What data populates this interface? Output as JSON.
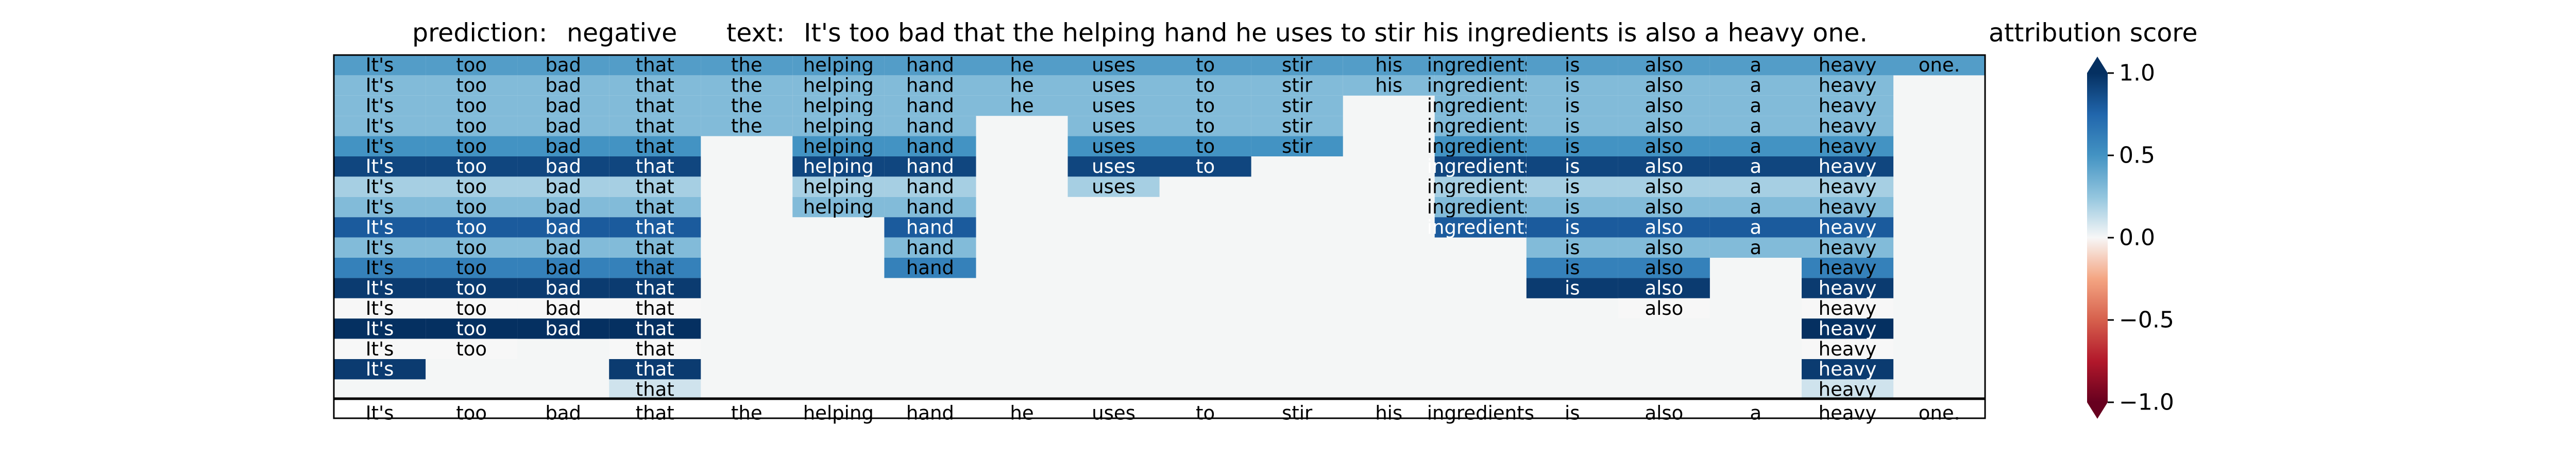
{
  "header": {
    "prediction_label": "prediction:",
    "prediction_value": "negative",
    "text_label": "text:",
    "text_value": "It's too bad that the helping hand he uses to stir his ingredients is also a heavy one.",
    "colorbar_title": "attribution score"
  },
  "colorbar": {
    "ticks": [
      1.0,
      0.5,
      0.0,
      -0.5,
      -1.0
    ],
    "tick_labels": [
      "1.0",
      "0.5",
      "0.0",
      "−0.5",
      "−1.0"
    ],
    "colors": {
      "positive": "#053061",
      "neutral": "#f7f7f7",
      "negative": "#67001f"
    }
  },
  "chart_data": {
    "type": "heatmap",
    "title": "",
    "xlabel": "",
    "ylabel": "",
    "value_range": [
      -1.0,
      1.0
    ],
    "colormap": "RdBu",
    "tokens": [
      "It's",
      "too",
      "bad",
      "that",
      "the",
      "helping",
      "hand",
      "he",
      "uses",
      "to",
      "stir",
      "his",
      "ingredients",
      "is",
      "also",
      "a",
      "heavy",
      "one."
    ],
    "rows": [
      [
        0.45,
        0.45,
        0.45,
        0.45,
        0.45,
        0.45,
        0.45,
        0.45,
        0.45,
        0.45,
        0.45,
        0.45,
        0.45,
        0.45,
        0.45,
        0.45,
        0.45,
        0.45
      ],
      [
        0.3,
        0.3,
        0.3,
        0.3,
        0.3,
        0.3,
        0.3,
        0.3,
        0.3,
        0.3,
        0.3,
        0.3,
        0.3,
        0.3,
        0.3,
        0.3,
        0.3,
        null
      ],
      [
        0.3,
        0.3,
        0.3,
        0.3,
        0.3,
        0.3,
        0.3,
        0.3,
        0.3,
        0.3,
        0.3,
        null,
        0.3,
        0.3,
        0.3,
        0.3,
        0.3,
        null
      ],
      [
        0.3,
        0.3,
        0.3,
        0.3,
        0.3,
        0.3,
        0.3,
        null,
        0.3,
        0.3,
        0.3,
        null,
        0.3,
        0.3,
        0.3,
        0.3,
        0.3,
        null
      ],
      [
        0.5,
        0.5,
        0.5,
        0.5,
        null,
        0.5,
        0.5,
        null,
        0.5,
        0.5,
        0.5,
        null,
        0.5,
        0.5,
        0.5,
        0.5,
        0.5,
        null
      ],
      [
        0.9,
        0.9,
        0.9,
        0.9,
        null,
        0.9,
        0.9,
        null,
        0.9,
        0.9,
        null,
        null,
        0.9,
        0.9,
        0.9,
        0.9,
        0.9,
        null
      ],
      [
        0.2,
        0.2,
        0.2,
        0.2,
        null,
        0.2,
        0.2,
        null,
        0.2,
        null,
        null,
        null,
        0.2,
        0.2,
        0.2,
        0.2,
        0.2,
        null
      ],
      [
        0.3,
        0.3,
        0.3,
        0.3,
        null,
        0.3,
        0.3,
        null,
        null,
        null,
        null,
        null,
        0.3,
        0.3,
        0.3,
        0.3,
        0.3,
        null
      ],
      [
        0.8,
        0.8,
        0.8,
        0.8,
        null,
        null,
        0.8,
        null,
        null,
        null,
        null,
        null,
        0.8,
        0.8,
        0.8,
        0.8,
        0.8,
        null
      ],
      [
        0.3,
        0.3,
        0.3,
        0.3,
        null,
        null,
        0.3,
        null,
        null,
        null,
        null,
        null,
        null,
        0.3,
        0.3,
        0.3,
        0.3,
        null
      ],
      [
        0.6,
        0.6,
        0.6,
        0.6,
        null,
        null,
        0.6,
        null,
        null,
        null,
        null,
        null,
        null,
        0.6,
        0.6,
        null,
        0.6,
        null
      ],
      [
        0.95,
        0.95,
        0.95,
        0.95,
        null,
        null,
        null,
        null,
        null,
        null,
        null,
        null,
        null,
        0.95,
        0.95,
        null,
        0.95,
        null
      ],
      [
        0.0,
        0.0,
        0.0,
        0.0,
        null,
        null,
        null,
        null,
        null,
        null,
        null,
        null,
        null,
        null,
        0.0,
        null,
        0.0,
        null
      ],
      [
        1.0,
        1.0,
        1.0,
        1.0,
        null,
        null,
        null,
        null,
        null,
        null,
        null,
        null,
        null,
        null,
        null,
        null,
        1.0,
        null
      ],
      [
        0.0,
        0.0,
        null,
        0.0,
        null,
        null,
        null,
        null,
        null,
        null,
        null,
        null,
        null,
        null,
        null,
        null,
        0.0,
        null
      ],
      [
        0.95,
        null,
        null,
        0.95,
        null,
        null,
        null,
        null,
        null,
        null,
        null,
        null,
        null,
        null,
        null,
        null,
        0.95,
        null
      ],
      [
        null,
        null,
        null,
        0.1,
        null,
        null,
        null,
        null,
        null,
        null,
        null,
        null,
        null,
        null,
        null,
        null,
        0.1,
        null
      ]
    ],
    "bottom_tokens": [
      "It's",
      "too",
      "bad",
      "that",
      "the",
      "helping",
      "hand",
      "he",
      "uses",
      "to",
      "stir",
      "his",
      "ingredients",
      "is",
      "also",
      "a",
      "heavy",
      "one."
    ]
  }
}
